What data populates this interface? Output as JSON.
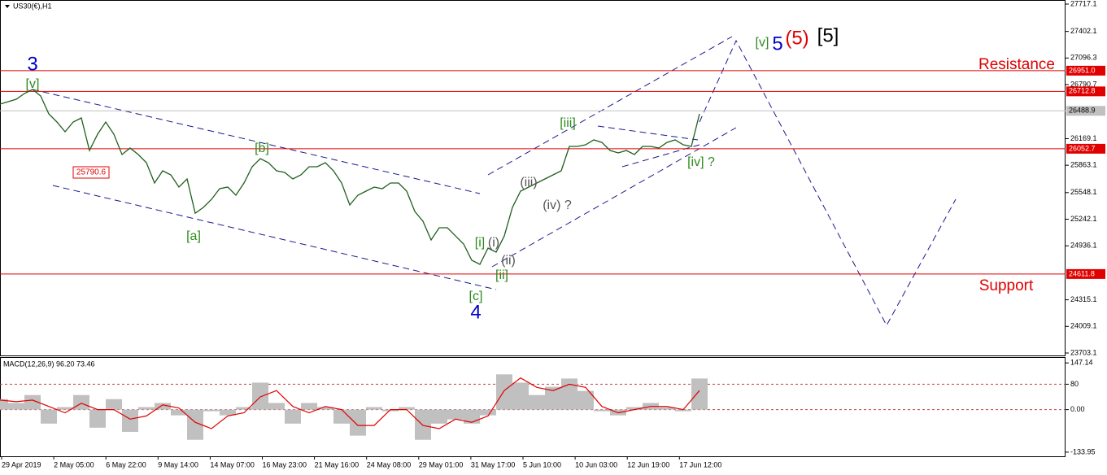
{
  "header": "US30(€),H1",
  "chart_data": [
    {
      "type": "line",
      "color": "#1f5f1f",
      "values": [
        26566,
        26594,
        26622,
        26688,
        26735,
        26660,
        26454,
        26360,
        26248,
        26360,
        26407,
        26033,
        26220,
        26360,
        26220,
        25986,
        26061,
        25986,
        25893,
        25659,
        25799,
        25752,
        25612,
        25705,
        25312,
        25378,
        25471,
        25593,
        25612,
        25518,
        25659,
        25846,
        25939,
        25893,
        25799,
        25780,
        25705,
        25752,
        25846,
        25846,
        25893,
        25799,
        25659,
        25406,
        25518,
        25565,
        25612,
        25593,
        25659,
        25659,
        25565,
        25331,
        25219,
        25004,
        25144,
        25144,
        25050,
        24957,
        24770,
        24723,
        24910,
        24863,
        25050,
        25378,
        25565,
        25612,
        25659,
        25705,
        25752,
        25799,
        26080,
        26080,
        26098,
        26155,
        26126,
        26033,
        26005,
        26033,
        25986,
        26080,
        26080,
        26061,
        26126,
        26155,
        26098,
        26080,
        26454
      ],
      "ylim": [
        23675,
        27764
      ],
      "yticks": [
        27717.1,
        27402.1,
        27096.3,
        26790.7,
        26169.1,
        25863.1,
        25548.1,
        25242.1,
        24936.1,
        24315.1,
        24009.1,
        23703.1
      ],
      "levels": [
        {
          "value": 26951,
          "label": "26951.0",
          "color": "#e00000"
        },
        {
          "value": 26712.8,
          "label": "26712.8",
          "color": "#e00000"
        },
        {
          "value": 26488.9,
          "label": "26488.9",
          "color": "#c0c0c0"
        },
        {
          "value": 26052.7,
          "label": "26052.7",
          "color": "#e00000"
        },
        {
          "value": 24611.8,
          "label": "24611.8",
          "color": "#e00000"
        }
      ],
      "xticks": [
        "29 Apr 2019",
        "2 May 05:00",
        "6 May 22:00",
        "9 May 14:00",
        "14 May 07:00",
        "16 May 23:00",
        "21 May 16:00",
        "24 May 08:00",
        "29 May 01:00",
        "31 May 17:00",
        "5 Jun 10:00",
        "10 Jun 03:00",
        "12 Jun 19:00",
        "17 Jun 12:00"
      ],
      "annotations": [
        {
          "text": "3",
          "color": "#0000cc"
        },
        {
          "text": "[v]",
          "color": "#2e8b1e"
        },
        {
          "text": "[b]",
          "color": "#2e8b1e"
        },
        {
          "text": "[a]",
          "color": "#2e8b1e"
        },
        {
          "text": "[c]",
          "color": "#2e8b1e"
        },
        {
          "text": "4",
          "color": "#0000cc"
        },
        {
          "text": "[i]",
          "color": "#2e8b1e"
        },
        {
          "text": "(i)",
          "color": "#555555"
        },
        {
          "text": "(ii)",
          "color": "#555555"
        },
        {
          "text": "[ii]",
          "color": "#2e8b1e"
        },
        {
          "text": "(iii)",
          "color": "#555555"
        },
        {
          "text": "(iv) ?",
          "color": "#555555"
        },
        {
          "text": "[iii]",
          "color": "#2e8b1e"
        },
        {
          "text": "[iv] ?",
          "color": "#2e8b1e"
        },
        {
          "text": "[v]",
          "color": "#2e8b1e"
        },
        {
          "text": "5",
          "color": "#0000cc"
        },
        {
          "text": "(5)",
          "color": "#e00000"
        },
        {
          "text": "[5]",
          "color": "#000000"
        },
        {
          "text": "Resistance",
          "color": "#e00000"
        },
        {
          "text": "Support",
          "color": "#e00000"
        },
        {
          "text": "25790.6",
          "color": "#e00000"
        }
      ]
    },
    {
      "type": "bar",
      "title": "MACD(12,26,9) 96.20 73.46",
      "color": "#c0c0c0",
      "values": [
        33,
        21,
        46,
        -44,
        8,
        46,
        -57,
        33,
        -70,
        8,
        21,
        -18,
        -95,
        -5,
        -18,
        8,
        85,
        21,
        -44,
        21,
        8,
        -44,
        -82,
        8,
        -5,
        8,
        -95,
        -44,
        -31,
        -44,
        -18,
        111,
        85,
        46,
        72,
        98,
        59,
        -5,
        -18,
        8,
        21,
        8,
        -5,
        98
      ],
      "signal": {
        "color": "#e00000",
        "values": [
          30,
          25,
          30,
          10,
          -10,
          20,
          0,
          0,
          -30,
          -20,
          15,
          5,
          -40,
          -60,
          -20,
          -10,
          40,
          60,
          10,
          -10,
          10,
          0,
          -50,
          -50,
          0,
          0,
          -50,
          -60,
          -30,
          -40,
          -20,
          60,
          100,
          70,
          60,
          80,
          70,
          10,
          -10,
          0,
          10,
          10,
          0,
          60
        ]
      },
      "ylim": [
        -147,
        163
      ],
      "yticks": [
        147.14,
        80,
        {
          "value": 0,
          "label": "0.00"
        },
        -133.95
      ],
      "levels": [
        80,
        0
      ]
    }
  ]
}
